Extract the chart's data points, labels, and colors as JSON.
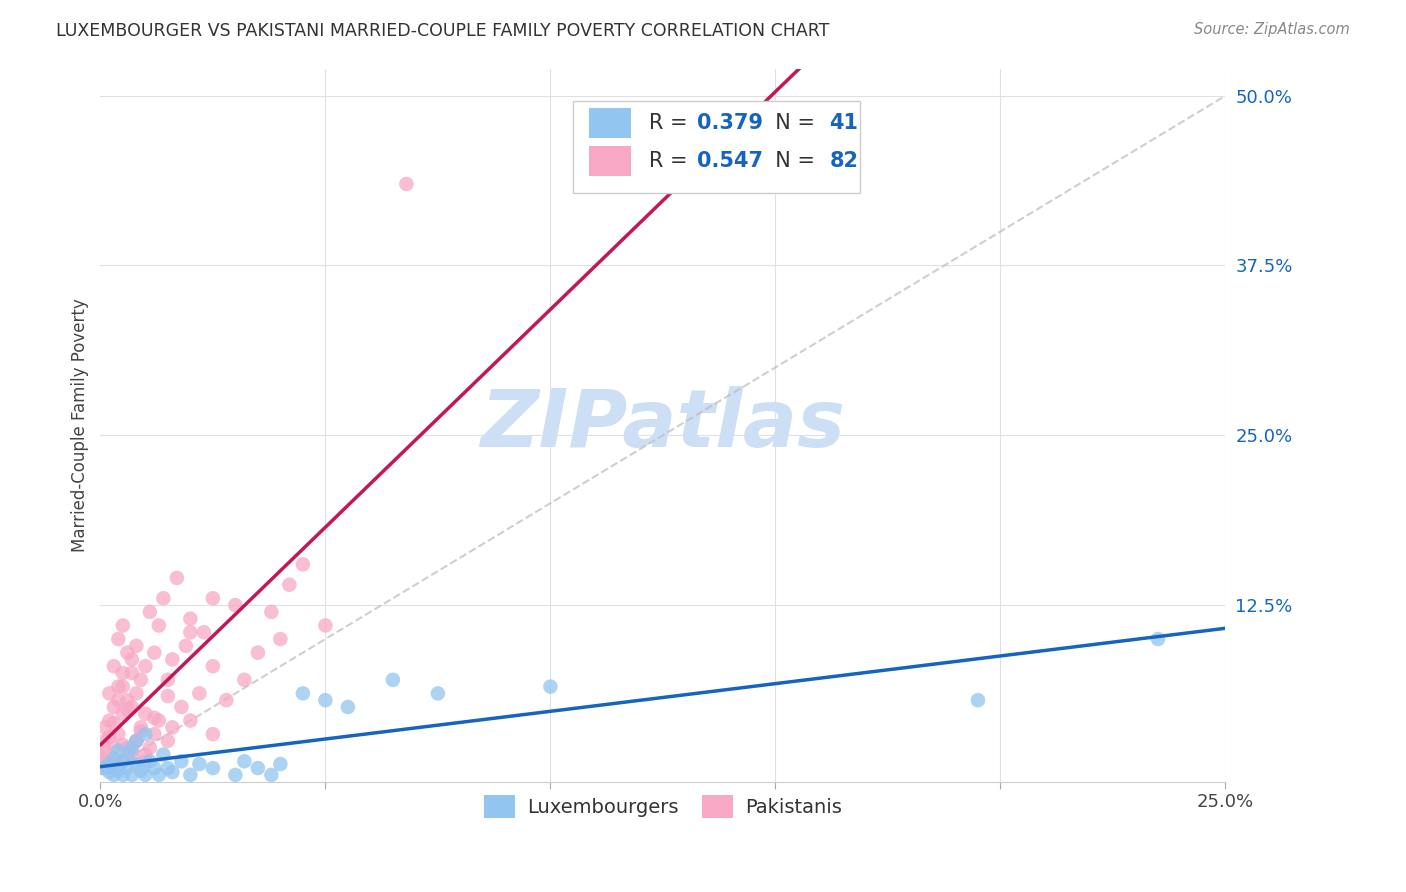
{
  "title": "LUXEMBOURGER VS PAKISTANI MARRIED-COUPLE FAMILY POVERTY CORRELATION CHART",
  "source": "Source: ZipAtlas.com",
  "ylabel_label": "Married-Couple Family Poverty",
  "xlim": [
    0.0,
    0.25
  ],
  "ylim": [
    -0.005,
    0.52
  ],
  "ytick_vals": [
    0.125,
    0.25,
    0.375,
    0.5
  ],
  "xtick_vals": [
    0.0,
    0.05,
    0.1,
    0.15,
    0.2,
    0.25
  ],
  "xtick_labels": [
    "0.0%",
    "",
    "",
    "",
    "",
    "25.0%"
  ],
  "legend_labels": [
    "Luxembourgers",
    "Pakistanis"
  ],
  "lux_R": "0.379",
  "lux_N": "41",
  "pak_R": "0.547",
  "pak_N": "82",
  "lux_color": "#92C5F0",
  "pak_color": "#F7A8C4",
  "lux_line_color": "#1565C0",
  "pak_line_color": "#C2185B",
  "ref_line_color": "#BBBBBB",
  "watermark_color": "#CCDFF5",
  "background_color": "#FFFFFF",
  "grid_color": "#E0E0E0",
  "tick_color": "#1565C0",
  "lux_x": [
    0.001,
    0.002,
    0.002,
    0.003,
    0.003,
    0.004,
    0.004,
    0.005,
    0.005,
    0.006,
    0.006,
    0.007,
    0.007,
    0.008,
    0.008,
    0.009,
    0.01,
    0.01,
    0.011,
    0.012,
    0.013,
    0.014,
    0.015,
    0.016,
    0.018,
    0.02,
    0.022,
    0.025,
    0.03,
    0.032,
    0.035,
    0.038,
    0.04,
    0.045,
    0.05,
    0.055,
    0.065,
    0.075,
    0.1,
    0.195,
    0.235
  ],
  "lux_y": [
    0.005,
    0.002,
    0.008,
    0.0,
    0.012,
    0.003,
    0.018,
    0.0,
    0.01,
    0.005,
    0.015,
    0.0,
    0.02,
    0.008,
    0.025,
    0.003,
    0.0,
    0.03,
    0.01,
    0.005,
    0.0,
    0.015,
    0.005,
    0.002,
    0.01,
    0.0,
    0.008,
    0.005,
    0.0,
    0.01,
    0.005,
    0.0,
    0.008,
    0.06,
    0.055,
    0.05,
    0.07,
    0.06,
    0.065,
    0.055,
    0.1
  ],
  "pak_x": [
    0.0,
    0.001,
    0.001,
    0.001,
    0.002,
    0.002,
    0.002,
    0.003,
    0.003,
    0.003,
    0.004,
    0.004,
    0.004,
    0.005,
    0.005,
    0.005,
    0.005,
    0.006,
    0.006,
    0.006,
    0.007,
    0.007,
    0.007,
    0.008,
    0.008,
    0.008,
    0.009,
    0.009,
    0.01,
    0.01,
    0.01,
    0.011,
    0.011,
    0.012,
    0.012,
    0.013,
    0.013,
    0.014,
    0.015,
    0.015,
    0.016,
    0.016,
    0.017,
    0.018,
    0.019,
    0.02,
    0.02,
    0.022,
    0.023,
    0.025,
    0.025,
    0.028,
    0.03,
    0.032,
    0.035,
    0.038,
    0.04,
    0.042,
    0.045,
    0.05,
    0.0,
    0.001,
    0.002,
    0.002,
    0.003,
    0.003,
    0.004,
    0.004,
    0.005,
    0.005,
    0.006,
    0.006,
    0.007,
    0.007,
    0.008,
    0.009,
    0.01,
    0.012,
    0.015,
    0.02,
    0.025,
    0.068
  ],
  "pak_y": [
    0.015,
    0.005,
    0.025,
    0.035,
    0.01,
    0.04,
    0.06,
    0.02,
    0.05,
    0.08,
    0.03,
    0.065,
    0.1,
    0.01,
    0.045,
    0.075,
    0.11,
    0.02,
    0.055,
    0.09,
    0.015,
    0.05,
    0.085,
    0.025,
    0.06,
    0.095,
    0.035,
    0.07,
    0.01,
    0.045,
    0.08,
    0.02,
    0.12,
    0.03,
    0.09,
    0.04,
    0.11,
    0.13,
    0.025,
    0.07,
    0.035,
    0.085,
    0.145,
    0.05,
    0.095,
    0.04,
    0.115,
    0.06,
    0.105,
    0.03,
    0.08,
    0.055,
    0.125,
    0.07,
    0.09,
    0.12,
    0.1,
    0.14,
    0.155,
    0.11,
    0.008,
    0.018,
    0.005,
    0.028,
    0.012,
    0.038,
    0.008,
    0.055,
    0.022,
    0.065,
    0.012,
    0.048,
    0.018,
    0.075,
    0.025,
    0.032,
    0.015,
    0.042,
    0.058,
    0.105,
    0.13,
    0.435
  ],
  "lux_reg": [
    0.0,
    0.25,
    0.018,
    0.095
  ],
  "pak_reg": [
    0.0,
    0.1,
    0.005,
    0.265
  ]
}
